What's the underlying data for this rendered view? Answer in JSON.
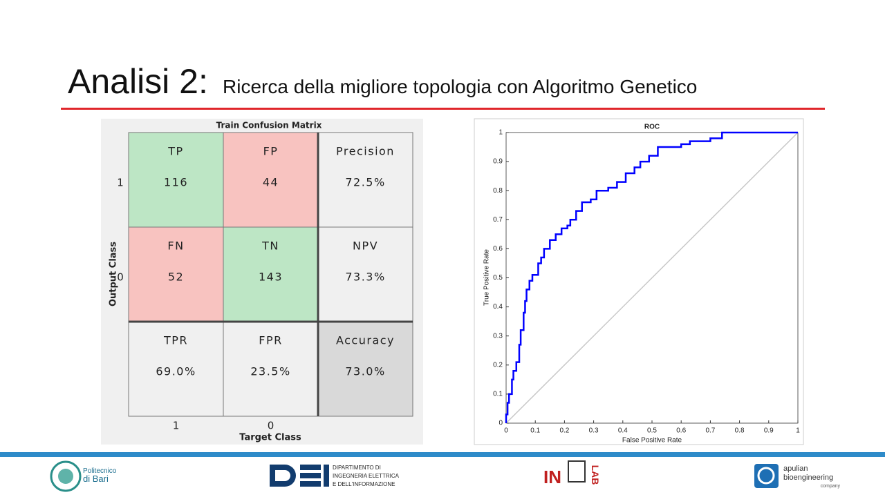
{
  "title": {
    "main": "Analisi 2:",
    "sub": "Ricerca della migliore topologia con Algoritmo Genetico"
  },
  "confusion_matrix": {
    "title": "Train Confusion Matrix",
    "x_label": "Target Class",
    "y_label": "Output Class",
    "column_labels": [
      "1",
      "0"
    ],
    "row_labels": [
      "1",
      "0"
    ],
    "cells": [
      [
        {
          "label": "TP",
          "value": "116"
        },
        {
          "label": "FP",
          "value": "44"
        },
        {
          "label": "Precision",
          "value": "72.5%"
        }
      ],
      [
        {
          "label": "FN",
          "value": "52"
        },
        {
          "label": "TN",
          "value": "143"
        },
        {
          "label": "NPV",
          "value": "73.3%"
        }
      ],
      [
        {
          "label": "TPR",
          "value": "69.0%"
        },
        {
          "label": "FPR",
          "value": "23.5%"
        },
        {
          "label": "Accuracy",
          "value": "73.0%"
        }
      ]
    ]
  },
  "chart_data": {
    "type": "line",
    "title": "ROC",
    "x_label": "False Positive Rate",
    "y_label": "True Positive Rate",
    "xlim": [
      0,
      1
    ],
    "ylim": [
      0,
      1
    ],
    "xticks": [
      0,
      0.1,
      0.2,
      0.3,
      0.4,
      0.5,
      0.6,
      0.7,
      0.8,
      0.9,
      1
    ],
    "yticks": [
      0,
      0.1,
      0.2,
      0.3,
      0.4,
      0.5,
      0.6,
      0.7,
      0.8,
      0.9,
      1
    ],
    "series": [
      {
        "color": "#0000ff",
        "x": [
          0,
          0,
          0.005,
          0.005,
          0.01,
          0.01,
          0.02,
          0.02,
          0.025,
          0.025,
          0.035,
          0.035,
          0.045,
          0.045,
          0.05,
          0.05,
          0.06,
          0.06,
          0.065,
          0.065,
          0.07,
          0.07,
          0.08,
          0.08,
          0.09,
          0.09,
          0.11,
          0.11,
          0.12,
          0.12,
          0.13,
          0.13,
          0.15,
          0.15,
          0.17,
          0.17,
          0.19,
          0.19,
          0.21,
          0.21,
          0.22,
          0.22,
          0.24,
          0.24,
          0.26,
          0.26,
          0.29,
          0.29,
          0.31,
          0.31,
          0.35,
          0.35,
          0.38,
          0.38,
          0.41,
          0.41,
          0.44,
          0.44,
          0.46,
          0.46,
          0.49,
          0.49,
          0.52,
          0.52,
          0.6,
          0.6,
          0.63,
          0.63,
          0.7,
          0.7,
          0.74,
          0.74,
          1
        ],
        "values": [
          0,
          0.03,
          0.03,
          0.07,
          0.07,
          0.1,
          0.1,
          0.15,
          0.15,
          0.18,
          0.18,
          0.21,
          0.21,
          0.27,
          0.27,
          0.32,
          0.32,
          0.38,
          0.38,
          0.42,
          0.42,
          0.46,
          0.46,
          0.49,
          0.49,
          0.51,
          0.51,
          0.55,
          0.55,
          0.57,
          0.57,
          0.6,
          0.6,
          0.63,
          0.63,
          0.65,
          0.65,
          0.67,
          0.67,
          0.68,
          0.68,
          0.7,
          0.7,
          0.73,
          0.73,
          0.76,
          0.76,
          0.77,
          0.77,
          0.8,
          0.8,
          0.81,
          0.81,
          0.83,
          0.83,
          0.86,
          0.86,
          0.88,
          0.88,
          0.9,
          0.9,
          0.92,
          0.92,
          0.95,
          0.95,
          0.96,
          0.96,
          0.97,
          0.97,
          0.98,
          0.98,
          1,
          1
        ]
      },
      {
        "color": "#c8c8c8",
        "x": [
          0,
          1
        ],
        "values": [
          0,
          1
        ]
      }
    ]
  },
  "footer": {
    "polibа": "Politecnico",
    "poliba_sub": "di Bari",
    "dei": [
      "DIPARTIMENTO DI",
      "INGEGNERIA ELETTRICA",
      "E DELL'INFORMAZIONE"
    ],
    "inlab": [
      "IN",
      "LAB"
    ],
    "apulian": [
      "apulian",
      "bioengineering",
      "company"
    ]
  }
}
